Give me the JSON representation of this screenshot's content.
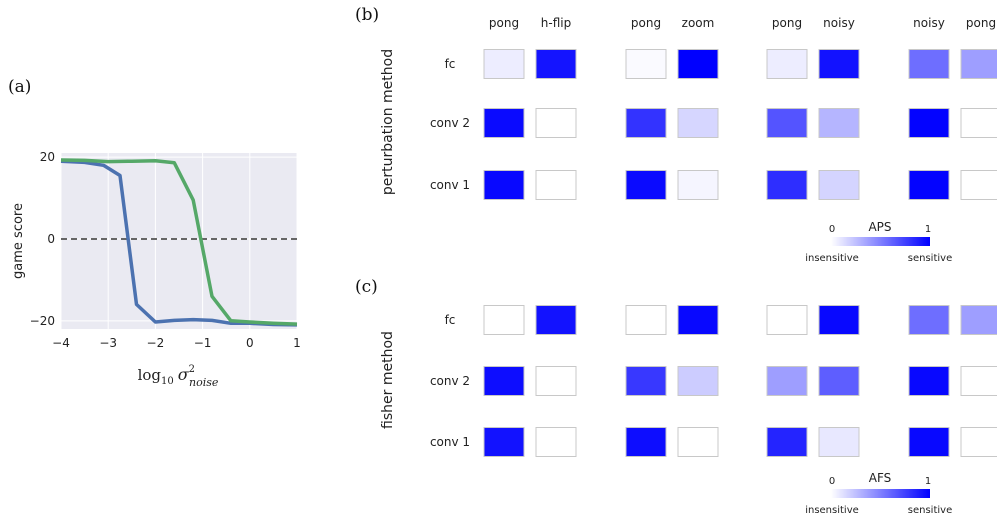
{
  "chart_data": [
    {
      "type": "line",
      "panel_label": "(a)",
      "ylabel": "game score",
      "xlabel_base": "log",
      "xlabel_sub": "10",
      "xlabel_sigma": "σ",
      "xlabel_sup": "2",
      "xlabel_subscript": "noise",
      "xlim": [
        -4,
        1
      ],
      "ylim": [
        -22,
        21
      ],
      "xticks": [
        "−4",
        "−3",
        "−2",
        "−1",
        "0",
        "1"
      ],
      "xtick_values": [
        -4,
        -3,
        -2,
        -1,
        0,
        1
      ],
      "yticks": [
        "20",
        "0",
        "−20"
      ],
      "ytick_values": [
        20,
        0,
        -20
      ],
      "grid": true,
      "reference_line": 0,
      "series": [
        {
          "color": "#4c72b0",
          "x": [
            -4,
            -3.5,
            -3.1,
            -2.75,
            -2.4,
            -2.0,
            -1.6,
            -1.2,
            -0.8,
            -0.4,
            0.0,
            0.5,
            1.0
          ],
          "y": [
            19.0,
            18.7,
            18.0,
            15.5,
            -16.0,
            -20.3,
            -19.9,
            -19.7,
            -19.9,
            -20.6,
            -20.6,
            -20.9,
            -21.0
          ]
        },
        {
          "color": "#55a868",
          "x": [
            -4,
            -3.5,
            -3.0,
            -2.5,
            -2.0,
            -1.6,
            -1.2,
            -0.8,
            -0.4,
            0.0,
            0.5,
            1.0
          ],
          "y": [
            19.3,
            19.2,
            18.9,
            19.0,
            19.1,
            18.6,
            9.5,
            -14.0,
            -20.0,
            -20.3,
            -20.6,
            -20.8
          ]
        }
      ]
    },
    {
      "type": "heatmap",
      "panel_label": "(b)",
      "row_title": "perturbation method",
      "col_labels": [
        "pong",
        "h-flip",
        "pong",
        "zoom",
        "pong",
        "noisy",
        "noisy",
        "pong"
      ],
      "row_labels": [
        "fc",
        "conv 2",
        "conv 1"
      ],
      "values": [
        [
          0.07,
          0.92,
          0.02,
          1.0,
          0.07,
          0.93,
          0.57,
          0.38
        ],
        [
          0.96,
          0.0,
          0.8,
          0.16,
          0.67,
          0.29,
          0.99,
          0.0
        ],
        [
          0.97,
          0.0,
          0.96,
          0.04,
          0.82,
          0.17,
          0.99,
          0.0
        ]
      ],
      "colorbar": {
        "title": "APS",
        "min_label": "0",
        "max_label": "1",
        "left_caption": "insensitive",
        "right_caption": "sensitive"
      }
    },
    {
      "type": "heatmap",
      "panel_label": "(c)",
      "row_title": "fisher method",
      "col_labels": [],
      "row_labels": [
        "fc",
        "conv 2",
        "conv 1"
      ],
      "values": [
        [
          0.0,
          0.93,
          0.0,
          0.97,
          0.0,
          0.97,
          0.57,
          0.38
        ],
        [
          0.95,
          0.0,
          0.78,
          0.2,
          0.38,
          0.63,
          0.97,
          0.0
        ],
        [
          0.93,
          0.0,
          0.95,
          0.0,
          0.86,
          0.09,
          0.97,
          0.0
        ]
      ],
      "colorbar": {
        "title": "AFS",
        "min_label": "0",
        "max_label": "1",
        "left_caption": "insensitive",
        "right_caption": "sensitive"
      }
    }
  ],
  "colors": {
    "plot_bg": "#eaeaf2",
    "grid": "#ffffff",
    "reference_line": "#666666",
    "heat_max": "#0000ff",
    "heat_min": "#ffffff",
    "cell_border": "#c8c8c8"
  }
}
